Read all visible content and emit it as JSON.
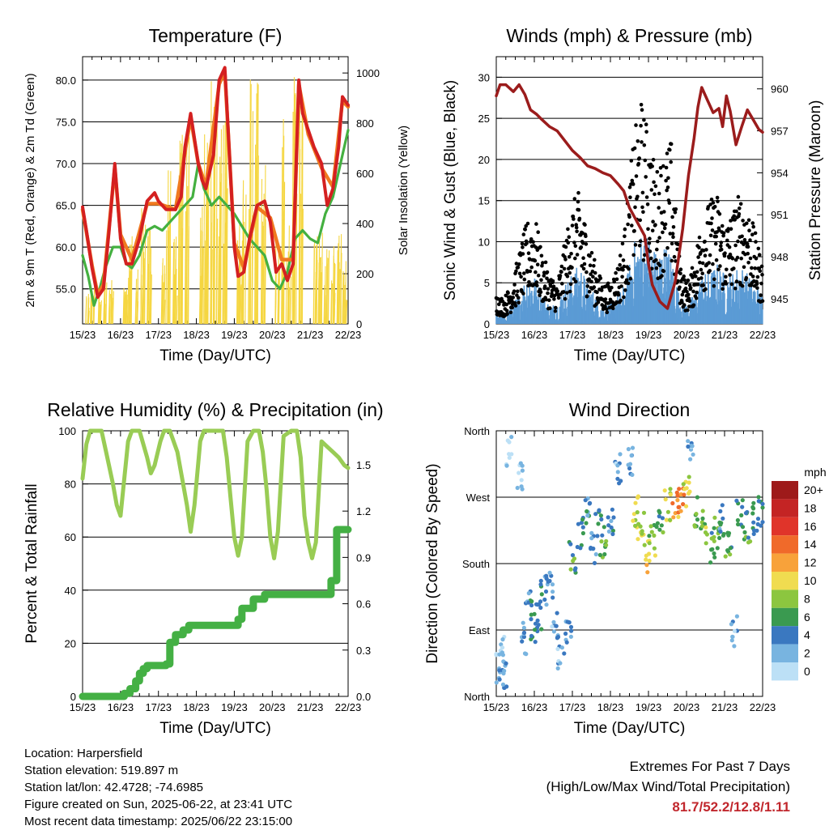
{
  "info": {
    "location": "Location: Harpersfield",
    "elevation": "Station elevation: 519.897 m",
    "latlon": "Station lat/lon: 42.4728; -74.6985",
    "created": "Figure created on Sun, 2025-06-22, at 23:41 UTC",
    "recent": "Most recent data timestamp: 2025/06/22 23:15:00"
  },
  "extremes": {
    "title": "Extremes For Past 7 Days",
    "subtitle": "(High/Low/Max Wind/Total Precipitation)",
    "values": "81.7/52.2/12.8/1.11"
  },
  "colors": {
    "temp2m": "#d42020",
    "temp9m": "#f07a20",
    "dewpoint": "#44b040",
    "solar": "#f5d640",
    "wind": "#5b9bd5",
    "gust": "#000000",
    "pressure": "#9b1c1c",
    "rh": "#99cc55",
    "precip": "#44b044"
  },
  "chart_data": [
    {
      "type": "line",
      "title": "Temperature (F)",
      "xlabel": "Time (Day/UTC)",
      "ylabel": "2m & 9m T (Red, Orange) & 2m Td (Green)",
      "ylabel_right": "Solar Insolation (Yellow)",
      "xticks": [
        "15/23",
        "16/23",
        "17/23",
        "18/23",
        "19/23",
        "20/23",
        "21/23",
        "22/23"
      ],
      "xlim": [
        0,
        7
      ],
      "ylim": [
        50.8,
        82.8
      ],
      "ylim_right": [
        0,
        1065
      ],
      "yticks": [
        "55.0",
        "60.0",
        "65.0",
        "70.0",
        "75.0",
        "80.0"
      ],
      "yticks_right": [
        "0",
        "200",
        "400",
        "600",
        "800",
        "1000"
      ],
      "grid": true,
      "series": [
        {
          "name": "2m T",
          "axis": "left",
          "x": [
            0,
            0.1,
            0.25,
            0.4,
            0.55,
            0.7,
            0.85,
            1.0,
            1.15,
            1.3,
            1.5,
            1.7,
            1.9,
            2.0,
            2.2,
            2.45,
            2.6,
            2.7,
            2.85,
            2.95,
            3.05,
            3.15,
            3.25,
            3.45,
            3.6,
            3.75,
            3.85,
            4.0,
            4.1,
            4.25,
            4.4,
            4.6,
            4.8,
            4.95,
            5.1,
            5.25,
            5.4,
            5.55,
            5.7,
            5.8,
            5.95,
            6.1,
            6.3,
            6.45,
            6.6,
            6.75,
            6.85,
            7.0
          ],
          "y": [
            64.8,
            62,
            57.5,
            54,
            55,
            62,
            70,
            61,
            58,
            58,
            61,
            65.5,
            66.5,
            65.5,
            64.5,
            64.5,
            66,
            72,
            76,
            73,
            70,
            68,
            67,
            71,
            80,
            81.5,
            73,
            60,
            56.5,
            57,
            61,
            65,
            65.5,
            63,
            57,
            58,
            56,
            58,
            80,
            76,
            74,
            72,
            70,
            65,
            67,
            72,
            78,
            77
          ]
        },
        {
          "name": "9m T",
          "axis": "left",
          "x": [
            0,
            0.25,
            0.4,
            0.55,
            0.85,
            1.0,
            1.3,
            1.7,
            2.0,
            2.45,
            2.85,
            3.05,
            3.25,
            3.6,
            3.75,
            4.0,
            4.25,
            4.6,
            4.95,
            5.25,
            5.55,
            5.7,
            5.95,
            6.3,
            6.6,
            6.85,
            7.0
          ],
          "y": [
            64.5,
            57.8,
            54.3,
            55.5,
            69.5,
            61.5,
            58.5,
            65.2,
            65.2,
            64.5,
            75.5,
            70,
            67.3,
            79.5,
            81,
            60.5,
            57.5,
            64.8,
            63.5,
            58.5,
            58.5,
            79.5,
            73.5,
            69.5,
            67.2,
            77.5,
            76.8
          ]
        },
        {
          "name": "2m Td",
          "axis": "left",
          "x": [
            0,
            0.15,
            0.3,
            0.45,
            0.6,
            0.8,
            1.0,
            1.15,
            1.3,
            1.5,
            1.7,
            1.9,
            2.1,
            2.3,
            2.5,
            2.7,
            2.9,
            3.05,
            3.2,
            3.4,
            3.6,
            3.8,
            4.0,
            4.2,
            4.4,
            4.6,
            4.8,
            5.0,
            5.2,
            5.4,
            5.6,
            5.8,
            6.0,
            6.2,
            6.4,
            6.6,
            6.8,
            7.0
          ],
          "y": [
            59,
            56.5,
            53,
            55,
            57.5,
            60,
            60,
            58,
            57.5,
            59,
            62,
            62.5,
            62,
            63,
            64,
            65,
            66,
            70,
            67,
            65,
            66,
            65,
            64,
            62.5,
            61,
            60,
            59,
            56,
            55,
            57,
            61,
            62,
            61,
            60.5,
            64,
            66,
            70,
            74
          ]
        },
        {
          "name": "Solar Insolation",
          "axis": "right",
          "x": [
            0.12,
            0.25,
            0.42,
            0.58,
            0.75,
            1.12,
            1.25,
            1.42,
            1.58,
            1.75,
            2.12,
            2.25,
            2.42,
            2.58,
            2.75,
            3.12,
            3.25,
            3.42,
            3.58,
            3.75,
            4.12,
            4.25,
            4.42,
            4.58,
            4.75,
            5.12,
            5.25,
            5.42,
            5.58,
            5.75,
            6.12,
            6.25,
            6.42,
            6.58,
            6.75,
            6.9
          ],
          "y": [
            120,
            200,
            150,
            260,
            180,
            150,
            350,
            230,
            500,
            380,
            300,
            640,
            350,
            780,
            850,
            500,
            760,
            980,
            1030,
            890,
            420,
            680,
            1000,
            1050,
            650,
            400,
            860,
            460,
            1000,
            1000,
            350,
            450,
            300,
            320,
            380,
            280
          ]
        }
      ]
    },
    {
      "type": "scatter",
      "title": "Winds (mph) & Pressure (mb)",
      "xlabel": "Time (Day/UTC)",
      "ylabel": "Sonic Wind & Gust (Blue, Black)",
      "ylabel_right": "Station Pressure (Maroon)",
      "xticks": [
        "15/23",
        "16/23",
        "17/23",
        "18/23",
        "19/23",
        "20/23",
        "21/23",
        "22/23"
      ],
      "xlim": [
        0,
        7
      ],
      "ylim": [
        0,
        32.5
      ],
      "ylim_right": [
        943.2,
        962.3
      ],
      "yticks": [
        "0",
        "5",
        "10",
        "15",
        "20",
        "25",
        "30"
      ],
      "yticks_right": [
        "945",
        "948",
        "951",
        "954",
        "957",
        "960"
      ],
      "grid": true,
      "series": [
        {
          "name": "Wind",
          "axis": "left",
          "x": [
            0,
            0.2,
            0.4,
            0.6,
            0.8,
            1.0,
            1.2,
            1.4,
            1.6,
            1.8,
            2.0,
            2.2,
            2.4,
            2.6,
            2.8,
            3.0,
            3.2,
            3.4,
            3.6,
            3.8,
            4.0,
            4.2,
            4.4,
            4.6,
            4.8,
            5.0,
            5.2,
            5.4,
            5.6,
            5.8,
            6.0,
            6.2,
            6.4,
            6.6,
            6.8,
            7.0
          ],
          "y": [
            1.5,
            1,
            2,
            3,
            5,
            5,
            3,
            2,
            2,
            4,
            5,
            6,
            4,
            3,
            2,
            2,
            3,
            4,
            8,
            9,
            9,
            7,
            8,
            7,
            3,
            2,
            3,
            5,
            5,
            6,
            5,
            5,
            6,
            5,
            4,
            3
          ]
        },
        {
          "name": "Gust",
          "axis": "left",
          "x": [
            0,
            0.2,
            0.4,
            0.6,
            0.8,
            1.0,
            1.2,
            1.4,
            1.6,
            1.8,
            2.0,
            2.2,
            2.4,
            2.6,
            2.8,
            3.0,
            3.2,
            3.4,
            3.6,
            3.8,
            4.0,
            4.2,
            4.4,
            4.6,
            4.8,
            5.0,
            5.2,
            5.4,
            5.6,
            5.8,
            6.0,
            6.2,
            6.4,
            6.6,
            6.8,
            7.0
          ],
          "y": [
            3,
            2.5,
            4,
            7,
            10,
            11,
            7,
            5,
            4,
            8,
            12,
            13,
            9,
            6,
            4,
            4,
            6,
            10,
            18,
            22,
            19,
            15,
            17,
            18,
            7,
            4,
            6,
            11,
            12,
            13,
            10,
            11,
            13,
            12,
            9,
            6
          ]
        },
        {
          "name": "Station Pressure",
          "axis": "right",
          "x": [
            0,
            0.1,
            0.25,
            0.45,
            0.6,
            0.75,
            0.9,
            1.05,
            1.2,
            1.4,
            1.6,
            1.8,
            2.0,
            2.2,
            2.4,
            2.6,
            2.8,
            3.0,
            3.2,
            3.35,
            3.5,
            3.6,
            3.7,
            3.8,
            3.9,
            4.0,
            4.1,
            4.3,
            4.5,
            4.7,
            4.9,
            5.05,
            5.2,
            5.3,
            5.4,
            5.55,
            5.7,
            5.85,
            5.95,
            6.05,
            6.15,
            6.3,
            6.45,
            6.6,
            6.75,
            6.9,
            7.0
          ],
          "y": [
            959.5,
            960.3,
            960.3,
            959.8,
            960.3,
            959.6,
            958.5,
            958.2,
            957.8,
            957.3,
            957,
            956.3,
            955.6,
            955.1,
            954.5,
            954.3,
            954,
            953.8,
            953.2,
            952.7,
            951.5,
            951,
            950.5,
            950,
            949.5,
            947.5,
            946,
            944.8,
            944.3,
            946.2,
            950,
            953.8,
            956.5,
            958.7,
            960.1,
            959.2,
            958.3,
            958.6,
            957.3,
            959.5,
            958.4,
            956,
            957.3,
            958.5,
            957.8,
            957.1,
            956.9
          ]
        }
      ]
    },
    {
      "type": "line",
      "title": "Relative Humidity (%) & Precipitation (in)",
      "xlabel": "Time (Day/UTC)",
      "ylabel": "Percent & Total Rainfall",
      "xticks": [
        "15/23",
        "16/23",
        "17/23",
        "18/23",
        "19/23",
        "20/23",
        "21/23",
        "22/23"
      ],
      "xlim": [
        0,
        7
      ],
      "ylim": [
        0,
        100
      ],
      "ylim_right": [
        0,
        1.72
      ],
      "yticks": [
        "0",
        "20",
        "40",
        "60",
        "80",
        "100"
      ],
      "yticks_right": [
        "0.0",
        "0.3",
        "0.6",
        "0.9",
        "1.2",
        "1.5"
      ],
      "grid": true,
      "series": [
        {
          "name": "Relative Humidity",
          "axis": "left",
          "x": [
            0,
            0.1,
            0.2,
            0.35,
            0.5,
            0.65,
            0.8,
            0.9,
            1.0,
            1.05,
            1.2,
            1.3,
            1.5,
            1.7,
            1.8,
            1.9,
            2.05,
            2.15,
            2.3,
            2.5,
            2.65,
            2.75,
            2.85,
            2.95,
            3.1,
            3.2,
            3.35,
            3.55,
            3.7,
            3.8,
            3.9,
            4.0,
            4.1,
            4.2,
            4.35,
            4.5,
            4.65,
            4.75,
            4.85,
            4.95,
            5.05,
            5.15,
            5.3,
            5.5,
            5.65,
            5.75,
            5.85,
            5.95,
            6.05,
            6.15,
            6.3,
            6.45,
            6.6,
            6.75,
            6.9,
            7.0
          ],
          "y": [
            82,
            95,
            100,
            100,
            100,
            90,
            80,
            72,
            68,
            75,
            96,
            100,
            100,
            90,
            84,
            87,
            96,
            100,
            100,
            92,
            80,
            72,
            62,
            72,
            96,
            100,
            100,
            100,
            100,
            90,
            75,
            60,
            53,
            60,
            96,
            100,
            100,
            92,
            78,
            60,
            52,
            62,
            98,
            100,
            100,
            90,
            68,
            58,
            52,
            58,
            96,
            94,
            92,
            90,
            87,
            86
          ]
        },
        {
          "name": "Total Rainfall",
          "axis": "right",
          "x": [
            0,
            0.8,
            1.0,
            1.1,
            1.25,
            1.4,
            1.5,
            1.6,
            1.7,
            2.0,
            2.2,
            2.3,
            2.45,
            2.65,
            2.8,
            3.0,
            3.5,
            3.9,
            4.1,
            4.2,
            4.5,
            4.8,
            5.0,
            5.5,
            6.0,
            6.2,
            6.45,
            6.55,
            6.7,
            7.0
          ],
          "y": [
            0,
            0,
            0,
            0.02,
            0.05,
            0.1,
            0.15,
            0.18,
            0.2,
            0.2,
            0.21,
            0.35,
            0.4,
            0.43,
            0.46,
            0.46,
            0.46,
            0.46,
            0.5,
            0.57,
            0.63,
            0.66,
            0.66,
            0.66,
            0.66,
            0.66,
            0.66,
            0.75,
            1.08,
            1.08
          ]
        }
      ]
    },
    {
      "type": "scatter",
      "title": "Wind Direction",
      "xlabel": "Time (Day/UTC)",
      "ylabel": "Direction (Colored By Speed)",
      "xticks": [
        "15/23",
        "16/23",
        "17/23",
        "18/23",
        "19/23",
        "20/23",
        "21/23",
        "22/23"
      ],
      "xlim": [
        0,
        7
      ],
      "yticks": [
        "North",
        "East",
        "South",
        "West",
        "North"
      ],
      "ylim": [
        0,
        360
      ],
      "grid": true,
      "legend": {
        "title": "mph",
        "labels": [
          "20+",
          "18",
          "16",
          "14",
          "12",
          "10",
          "8",
          "6",
          "4",
          "2",
          "0"
        ],
        "colors": [
          "#9e1a1a",
          "#c42424",
          "#e0342a",
          "#f06a2a",
          "#f8a23a",
          "#f0dc50",
          "#8cc63f",
          "#3a9a50",
          "#3a78c0",
          "#78b4e0",
          "#bce0f6"
        ]
      },
      "series": [
        {
          "name": "Direction",
          "x": [
            0.05,
            0.15,
            0.25,
            0.35,
            0.6,
            0.75,
            0.85,
            1.0,
            1.1,
            1.25,
            1.4,
            1.55,
            1.7,
            1.9,
            2.0,
            2.2,
            2.4,
            2.55,
            2.7,
            2.8,
            3.0,
            3.2,
            3.5,
            3.65,
            3.8,
            3.95,
            4.1,
            4.3,
            4.5,
            4.7,
            4.85,
            5.0,
            5.1,
            5.3,
            5.5,
            5.65,
            5.8,
            5.95,
            6.1,
            6.25,
            6.4,
            6.6,
            6.8,
            6.95
          ],
          "y": [
            40,
            60,
            30,
            330,
            300,
            80,
            120,
            90,
            110,
            140,
            150,
            100,
            60,
            80,
            190,
            220,
            250,
            200,
            230,
            210,
            240,
            310,
            320,
            250,
            230,
            190,
            210,
            240,
            260,
            265,
            270,
            275,
            335,
            250,
            230,
            200,
            220,
            240,
            200,
            90,
            250,
            230,
            240,
            250
          ],
          "speed": [
            2,
            1,
            3,
            0,
            1,
            3,
            4,
            5,
            5,
            4,
            3,
            2,
            2,
            3,
            6,
            5,
            4,
            3,
            4,
            6,
            4,
            2,
            3,
            8,
            9,
            10,
            8,
            6,
            9,
            12,
            13,
            10,
            2,
            7,
            8,
            6,
            7,
            4,
            6,
            2,
            5,
            6,
            5,
            4
          ]
        }
      ]
    }
  ]
}
